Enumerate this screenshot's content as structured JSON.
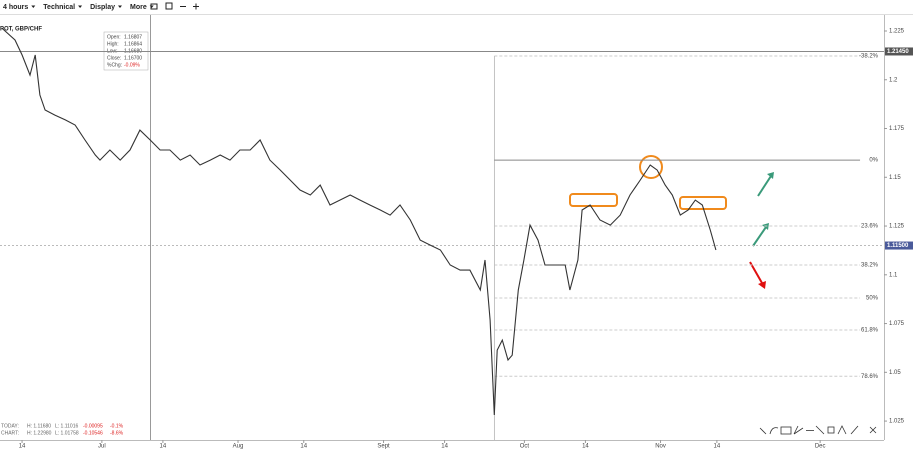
{
  "chart_data": {
    "type": "line",
    "title": "SPOT, GBP/CHF",
    "toolbar": [
      "4 hours",
      "Technical",
      "Display",
      "More"
    ],
    "ohlc": [
      [
        "Open:",
        "1.16807"
      ],
      [
        "High:",
        "1.16864"
      ],
      [
        "Low:",
        "1.16680"
      ],
      [
        "Close:",
        "1.16700"
      ],
      [
        "%Chg:",
        "-0.09%"
      ]
    ],
    "stats": [
      [
        "TODAY:",
        "H: 1.11680",
        "L: 1.11016",
        "-0.00095",
        "-0.1%"
      ],
      [
        "CHART:",
        "H: 1.22980",
        "L: 1.01758",
        "-0.10546",
        "-8.6%"
      ]
    ],
    "color": "#333333",
    "x": [
      -4.3,
      -1.5,
      0,
      1.7,
      2.8,
      3.8,
      4.9,
      7.0,
      9.2,
      11.3,
      13.4,
      15.6,
      16.6,
      18.7,
      20.9,
      23.0,
      25.1,
      27.3,
      29.4,
      31.5,
      33.7,
      35.8,
      37.9,
      40.1,
      42.2,
      44.3,
      46.4,
      48.6,
      50.7,
      52.8,
      55.0,
      57.1,
      59.2,
      61.4,
      63.5,
      65.6,
      67.7,
      69.9,
      72.0,
      74.1,
      76.3,
      78.4,
      80.5,
      82.7,
      84.8,
      86.9,
      89.1,
      91.2,
      93.3,
      95.4,
      97.6,
      98.6,
      99.7,
      100.6,
      101.2,
      102.3,
      103.5,
      104.4,
      105.7,
      106.9,
      108.2,
      109.9,
      111.4,
      113.5,
      115.7,
      116.7,
      118.4,
      119.3,
      121.0,
      123.1,
      125.3,
      127.4,
      129.5,
      131.7,
      133.8,
      135.3,
      137.0,
      138.5,
      140.2,
      141.9,
      143.4,
      144.9,
      146.6,
      147.8
    ],
    "values": [
      1.2265,
      1.2204,
      1.2127,
      1.2024,
      1.2127,
      1.1922,
      1.1845,
      1.1819,
      1.1794,
      1.1768,
      1.1691,
      1.1614,
      1.1588,
      1.164,
      1.1588,
      1.164,
      1.1742,
      1.1691,
      1.164,
      1.164,
      1.1588,
      1.1614,
      1.1563,
      1.1588,
      1.1614,
      1.1588,
      1.164,
      1.164,
      1.1691,
      1.1588,
      1.1537,
      1.1486,
      1.1435,
      1.1409,
      1.146,
      1.1358,
      1.1383,
      1.1409,
      1.1383,
      1.1358,
      1.1332,
      1.1306,
      1.1358,
      1.1281,
      1.1178,
      1.1153,
      1.1127,
      1.105,
      1.1024,
      1.1024,
      1.0922,
      1.1076,
      1.0768,
      1.0281,
      1.0614,
      1.0665,
      1.0563,
      1.0588,
      1.0922,
      1.1076,
      1.1255,
      1.1178,
      1.105,
      1.105,
      1.105,
      1.0922,
      1.1076,
      1.1332,
      1.1358,
      1.1281,
      1.1255,
      1.1306,
      1.1409,
      1.1486,
      1.1563,
      1.1537,
      1.146,
      1.1409,
      1.1306,
      1.1332,
      1.1383,
      1.1358,
      1.1229,
      1.1127
    ],
    "xlim": [
      -4.7,
      183.6
    ],
    "xticks": [
      {
        "value": 0,
        "label": "14"
      },
      {
        "value": 17,
        "label": "Jul"
      },
      {
        "value": 30,
        "label": "14"
      },
      {
        "value": 46,
        "label": "Aug"
      },
      {
        "value": 60,
        "label": "14"
      },
      {
        "value": 77,
        "label": "Sept"
      },
      {
        "value": 90,
        "label": "14"
      },
      {
        "value": 107,
        "label": "Oct"
      },
      {
        "value": 120,
        "label": "14"
      },
      {
        "value": 136,
        "label": "Nov"
      },
      {
        "value": 148,
        "label": "14"
      },
      {
        "value": 170,
        "label": "Dec"
      }
    ],
    "ylim": [
      1.0153,
      1.2332
    ],
    "yticks": [
      1.225,
      1.2,
      1.175,
      1.15,
      1.125,
      1.1,
      1.075,
      1.05,
      1.025
    ],
    "price_lines": [
      {
        "value": 1.2145,
        "label": "1.21450",
        "color": "#555555"
      },
      {
        "value": 1.115,
        "label": "1.11500",
        "color": "#4a5a9a"
      }
    ],
    "fib_x": [
      100.6,
      178.5
    ],
    "fib_levels": [
      {
        "label": "-38.2%",
        "value": 1.2122
      },
      {
        "label": "0%",
        "value": 1.1588
      },
      {
        "label": "23.6%",
        "value": 1.125
      },
      {
        "label": "38.2%",
        "value": 1.105
      },
      {
        "label": "50%",
        "value": 1.0881
      },
      {
        "label": "61.8%",
        "value": 1.0717
      },
      {
        "label": "78.6%",
        "value": 1.048
      }
    ]
  }
}
